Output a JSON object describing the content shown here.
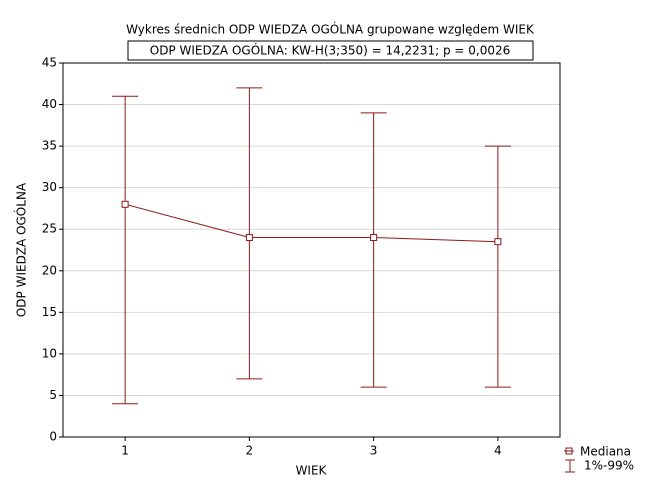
{
  "chart_data": {
    "type": "line",
    "title": "Wykres średnich ODP WIEDZA OGÓLNA grupowane względem WIEK",
    "subtitle": "ODP WIEDZA OGÓLNA:  KW-H(3;350) = 14,2231; p = 0,0026",
    "x_label": "WIEK",
    "y_label": "ODP WIEDZA OGÓLNA",
    "categories": [
      "1",
      "2",
      "3",
      "4"
    ],
    "series": [
      {
        "name": "Mediana",
        "color": "#8b1a1a",
        "values": [
          28,
          24,
          24,
          23.5
        ]
      }
    ],
    "range": {
      "name": "1%-99%",
      "color": "#8b1a1a",
      "low": [
        4,
        7,
        6,
        6
      ],
      "high": [
        41,
        42,
        39,
        35
      ]
    },
    "ylim": [
      0,
      45
    ],
    "yticks": [
      0,
      5,
      10,
      15,
      20,
      25,
      30,
      35,
      40,
      45
    ],
    "grid": true
  }
}
